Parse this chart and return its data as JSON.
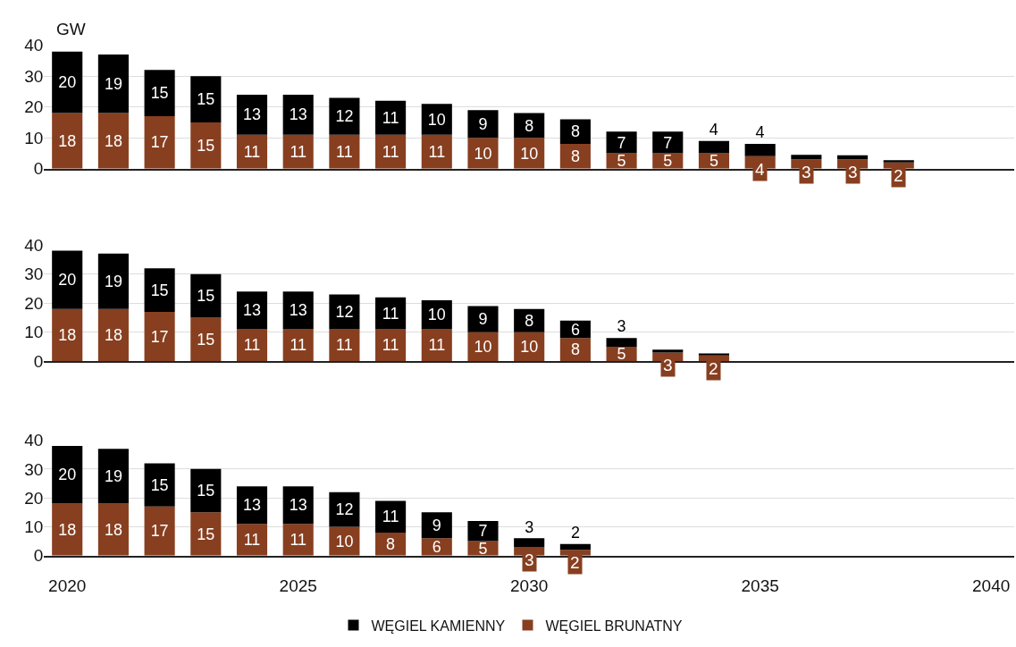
{
  "chart_data": [
    {
      "type": "bar",
      "stacked": true,
      "ylabel": "GW",
      "x": [
        2020,
        2021,
        2022,
        2023,
        2024,
        2025,
        2026,
        2027,
        2028,
        2029,
        2030,
        2031,
        2032,
        2033,
        2034,
        2035,
        2036,
        2037,
        2038
      ],
      "xlim": [
        2019.5,
        2040.5
      ],
      "ylim": [
        0,
        40
      ],
      "yticks": [
        0,
        10,
        20,
        30,
        40
      ],
      "grid": "y",
      "legend": false,
      "tick_labels": "y",
      "series": [
        {
          "color": "#873f20",
          "values": [
            18,
            18,
            17,
            15,
            11,
            11,
            11,
            11,
            11,
            10,
            10,
            8,
            5,
            5,
            5,
            4,
            3,
            3,
            2
          ],
          "value_labels": [
            "18",
            "18",
            "17",
            "15",
            "11",
            "11",
            "11",
            "11",
            "11",
            "10",
            "10",
            "8",
            "5",
            "5",
            "5",
            "4",
            "3",
            "3",
            "2"
          ]
        },
        {
          "color": "#000000",
          "values": [
            20,
            19,
            15,
            15,
            13,
            13,
            12,
            11,
            10,
            9,
            8,
            8,
            7,
            7,
            4,
            4,
            1.5,
            1.3,
            0.7
          ],
          "value_labels": [
            "20",
            "19",
            "15",
            "15",
            "13",
            "13",
            "12",
            "11",
            "10",
            "9",
            "8",
            "8",
            "7",
            "7",
            "4",
            "4",
            null,
            null,
            null
          ]
        }
      ]
    },
    {
      "type": "bar",
      "stacked": true,
      "x": [
        2020,
        2021,
        2022,
        2023,
        2024,
        2025,
        2026,
        2027,
        2028,
        2029,
        2030,
        2031,
        2032,
        2033,
        2034
      ],
      "xlim": [
        2019.5,
        2040.5
      ],
      "ylim": [
        0,
        40
      ],
      "yticks": [
        0,
        10,
        20,
        30,
        40
      ],
      "grid": "y",
      "legend": false,
      "tick_labels": "y",
      "series": [
        {
          "color": "#873f20",
          "values": [
            18,
            18,
            17,
            15,
            11,
            11,
            11,
            11,
            11,
            10,
            10,
            8,
            5,
            3,
            2
          ],
          "value_labels": [
            "18",
            "18",
            "17",
            "15",
            "11",
            "11",
            "11",
            "11",
            "11",
            "10",
            "10",
            "8",
            "5",
            "3",
            "2"
          ]
        },
        {
          "color": "#000000",
          "values": [
            20,
            19,
            15,
            15,
            13,
            13,
            12,
            11,
            10,
            9,
            8,
            6,
            3,
            1,
            0.7
          ],
          "value_labels": [
            "20",
            "19",
            "15",
            "15",
            "13",
            "13",
            "12",
            "11",
            "10",
            "9",
            "8",
            "6",
            "3",
            null,
            null
          ]
        }
      ]
    },
    {
      "type": "bar",
      "stacked": true,
      "x": [
        2020,
        2021,
        2022,
        2023,
        2024,
        2025,
        2026,
        2027,
        2028,
        2029,
        2030,
        2031
      ],
      "xlim": [
        2019.5,
        2040.5
      ],
      "xticks": [
        2020,
        2025,
        2030,
        2035,
        2040
      ],
      "ylim": [
        0,
        40
      ],
      "yticks": [
        0,
        10,
        20,
        30,
        40
      ],
      "grid": "y",
      "legend": "bottom",
      "series": [
        {
          "name": "WĘGIEL BRUNATNY",
          "color": "#873f20",
          "values": [
            18,
            18,
            17,
            15,
            11,
            11,
            10,
            8,
            6,
            5,
            3,
            2
          ],
          "value_labels": [
            "18",
            "18",
            "17",
            "15",
            "11",
            "11",
            "10",
            "8",
            "6",
            "5",
            "3",
            "2"
          ]
        },
        {
          "name": "WĘGIEL KAMIENNY",
          "color": "#000000",
          "values": [
            20,
            19,
            15,
            15,
            13,
            13,
            12,
            11,
            9,
            7,
            3,
            2
          ],
          "value_labels": [
            "20",
            "19",
            "15",
            "15",
            "13",
            "13",
            "12",
            "11",
            "9",
            "7",
            "3",
            "2"
          ]
        }
      ]
    }
  ]
}
